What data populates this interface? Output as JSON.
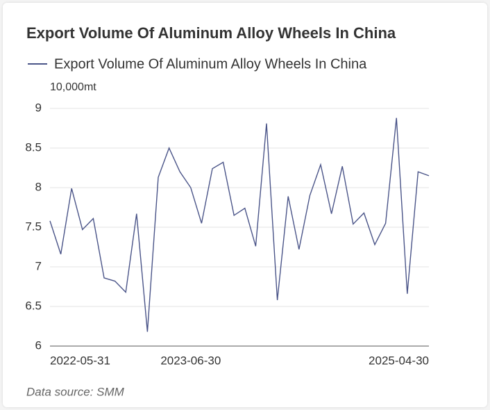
{
  "chart_data": {
    "type": "line",
    "title": "Export Volume Of Aluminum Alloy Wheels In China",
    "y_axis_label": "10,000mt",
    "source": "Data source:  SMM",
    "categories": [
      "2022-05-31",
      null,
      null,
      null,
      null,
      null,
      null,
      null,
      null,
      null,
      null,
      null,
      null,
      "2023-06-30",
      null,
      null,
      null,
      null,
      null,
      null,
      null,
      null,
      null,
      null,
      null,
      null,
      null,
      null,
      null,
      null,
      null,
      null,
      null,
      null,
      null,
      "2025-04-30"
    ],
    "series": [
      {
        "name": "Export Volume Of Aluminum Alloy Wheels In China",
        "color": "#4a5488",
        "values": [
          7.58,
          7.16,
          7.99,
          7.47,
          7.61,
          6.86,
          6.82,
          6.68,
          7.67,
          6.18,
          8.13,
          8.5,
          8.2,
          8.0,
          7.55,
          8.24,
          8.32,
          7.65,
          7.74,
          7.26,
          8.81,
          6.58,
          7.89,
          7.22,
          7.9,
          8.29,
          7.67,
          8.27,
          7.54,
          7.68,
          7.28,
          7.55,
          8.88,
          6.66,
          8.2,
          8.15
        ]
      }
    ],
    "ylim": [
      6,
      9
    ],
    "yticks": [
      6,
      6.5,
      7,
      7.5,
      8,
      8.5,
      9
    ],
    "grid": true
  }
}
